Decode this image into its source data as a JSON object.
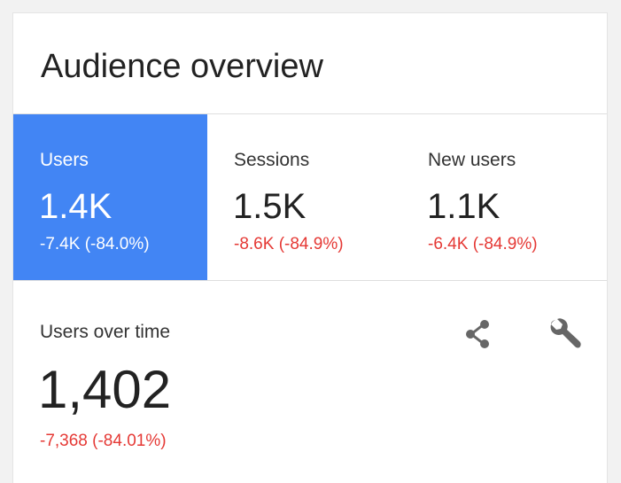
{
  "card": {
    "title": "Audience overview"
  },
  "metrics": [
    {
      "label": "Users",
      "value": "1.4K",
      "change": "-7.4K (-84.0%)",
      "selected": true
    },
    {
      "label": "Sessions",
      "value": "1.5K",
      "change": "-8.6K (-84.9%)",
      "selected": false
    },
    {
      "label": "New users",
      "value": "1.1K",
      "change": "-6.4K (-84.9%)",
      "selected": false
    }
  ],
  "detail": {
    "label": "Users over time",
    "value": "1,402",
    "change": "-7,368 (-84.01%)"
  },
  "icons": {
    "share": "share-icon",
    "settings": "wrench-icon"
  },
  "colors": {
    "accent": "#4285f4",
    "negative": "#e53935",
    "icon": "#666666"
  }
}
